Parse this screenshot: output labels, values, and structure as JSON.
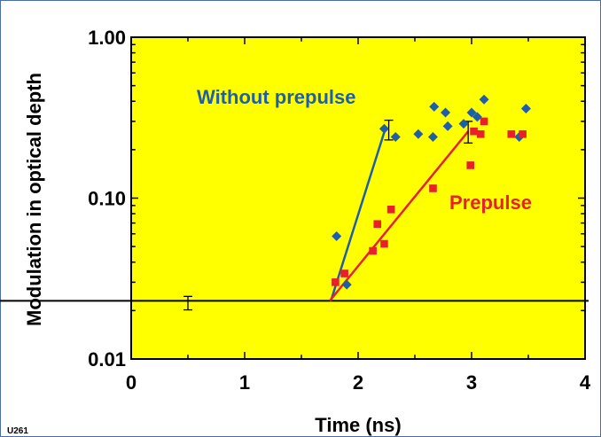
{
  "chart_data": {
    "type": "scatter",
    "xlabel": "Time (ns)",
    "ylabel": "Modulation in optical depth",
    "xlim": [
      0,
      4
    ],
    "ylim": [
      0.01,
      1.0
    ],
    "yscale": "log",
    "x_ticks": [
      0,
      1,
      2,
      3,
      4
    ],
    "x_tick_labels": [
      "0",
      "1",
      "2",
      "3",
      "4"
    ],
    "y_ticks": [
      0.01,
      0.1,
      1.0
    ],
    "y_tick_labels": [
      "0.01",
      "0.10",
      "1.00"
    ],
    "background_color": "#ffff00",
    "grid": false,
    "code_label": "U261",
    "series": [
      {
        "name": "Without prepulse",
        "color": "#1f5fa8",
        "marker": "diamond",
        "points": [
          [
            1.81,
            0.058
          ],
          [
            1.9,
            0.029
          ],
          [
            2.23,
            0.27
          ],
          [
            2.33,
            0.24
          ],
          [
            2.53,
            0.25
          ],
          [
            2.66,
            0.24
          ],
          [
            2.67,
            0.37
          ],
          [
            2.77,
            0.34
          ],
          [
            2.79,
            0.28
          ],
          [
            2.93,
            0.29
          ],
          [
            3.0,
            0.34
          ],
          [
            3.05,
            0.32
          ],
          [
            3.11,
            0.41
          ],
          [
            3.42,
            0.24
          ],
          [
            3.48,
            0.36
          ]
        ],
        "fit": [
          [
            1.76,
            0.023
          ],
          [
            2.24,
            0.27
          ]
        ]
      },
      {
        "name": "Prepulse",
        "color": "#e8202a",
        "marker": "square",
        "points": [
          [
            1.8,
            0.03
          ],
          [
            1.88,
            0.034
          ],
          [
            2.13,
            0.047
          ],
          [
            2.17,
            0.069
          ],
          [
            2.23,
            0.052
          ],
          [
            2.29,
            0.085
          ],
          [
            2.66,
            0.115
          ],
          [
            2.99,
            0.16
          ],
          [
            3.02,
            0.26
          ],
          [
            3.08,
            0.25
          ],
          [
            3.11,
            0.3
          ],
          [
            3.35,
            0.25
          ],
          [
            3.45,
            0.25
          ]
        ],
        "fit": [
          [
            1.75,
            0.023
          ],
          [
            2.97,
            0.26
          ]
        ]
      }
    ],
    "baseline": {
      "y": 0.023,
      "color": "#000000"
    },
    "error_bars": [
      {
        "x": 0.5,
        "y": 0.0222,
        "low": 0.0202,
        "high": 0.0245
      },
      {
        "x": 2.27,
        "y": 0.27,
        "low": 0.23,
        "high": 0.305
      },
      {
        "x": 2.97,
        "y": 0.255,
        "low": 0.22,
        "high": 0.3
      }
    ]
  }
}
